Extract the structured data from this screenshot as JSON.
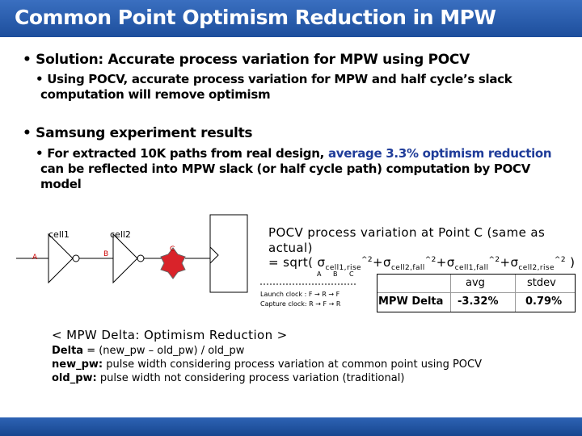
{
  "title": "Common Point Optimism Reduction in MPW",
  "bullet1": {
    "heading": "• Solution: Accurate process variation for MPW using POCV",
    "sub_line1": "• Using POCV, accurate process variation for MPW and half cycle’s slack",
    "sub_line2": "computation will remove optimism"
  },
  "bullet2": {
    "heading": "• Samsung experiment results",
    "sub_prefix": "• For extracted 10K paths from real design,",
    "sub_highlight": "average 3.3% optimism reduction",
    "sub_line2": "can be reflected into MPW slack (or half cycle path) computation by POCV",
    "sub_line3": "model"
  },
  "diagram": {
    "cell1": "cell1",
    "cell2": "cell2",
    "point_a": "A",
    "point_b": "B",
    "point_c": "C",
    "bottom_a": "A",
    "bottom_b": "B",
    "bottom_c": "C",
    "launch": "Launch clock : F → R → F",
    "capture": "Capture clock: R → F → R"
  },
  "pocv": {
    "line1": "POCV process variation at Point C (same as",
    "line2": "actual)",
    "formula_start": "= sqrt(",
    "sigma": "σ",
    "sub1": "cell1,rise",
    "sup": "^2",
    "plus": "+",
    "sub2": "cell2,fall",
    "sub3": "cell1,fall",
    "sub4": "cell2,rise",
    "formula_end": ")"
  },
  "table": {
    "col_avg": "avg",
    "col_stdev": "stdev",
    "row_label": "MPW Delta",
    "avg": "-3.32%",
    "stdev": "0.79%"
  },
  "notes": {
    "heading": "< MPW Delta: Optimism Reduction >",
    "line1_label": "Delta",
    "line1_text": " = (new_pw – old_pw) / old_pw",
    "line2_label": "new_pw:",
    "line2_text": " pulse width considering process variation at common point using POCV",
    "line3_label": "old_pw:",
    "line3_text": " pulse width not considering process variation (traditional)"
  },
  "colors": {
    "title_bar": "#1d4e9c",
    "highlight": "#1f3c99",
    "marker": "#d9232a"
  }
}
